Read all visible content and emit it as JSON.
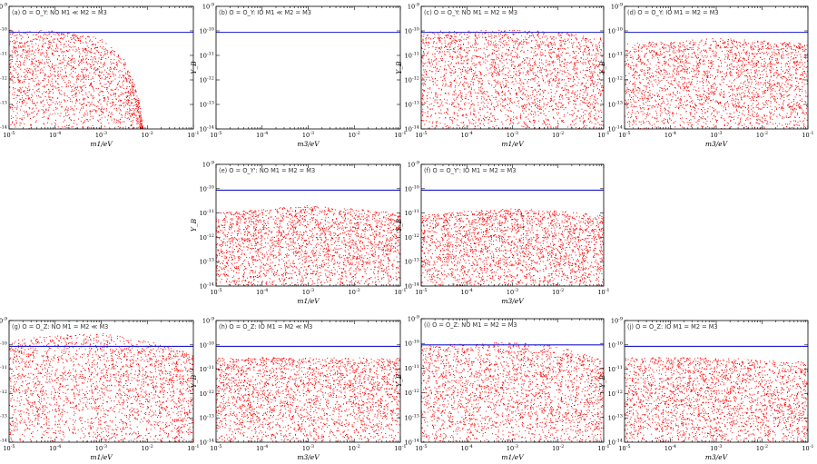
{
  "colors": {
    "points": "#ff0000",
    "bound": "#1a1acc",
    "axis": "#000000"
  },
  "chart_data": [
    {
      "id": "a",
      "type": "scatter",
      "title": "(a) O = O_Y: NO  M1 ≪ M2 = M3",
      "xlabel": "m1/eV",
      "ylabel": "Y_B",
      "xscale": "log",
      "yscale": "log",
      "xlim": [
        1e-05,
        0.1
      ],
      "ylim": [
        1e-14,
        1e-09
      ],
      "observed_Y_B": 8.7e-11,
      "xticks": [
        "10^-5",
        "10^-4",
        "10^-3",
        "10^-2",
        "10^-1"
      ],
      "yticks": [
        "10^-14",
        "10^-13",
        "10^-12",
        "10^-11",
        "10^-10",
        "10^-9"
      ],
      "scatter_envelope": {
        "x": [
          1e-05,
          0.0001,
          0.001,
          0.003,
          0.005,
          0.007,
          0.008
        ],
        "y_max": [
          1.2e-10,
          1e-10,
          5e-11,
          8e-12,
          1e-12,
          1e-13,
          1e-14
        ]
      }
    },
    {
      "id": "b",
      "type": "scatter",
      "title": "(b) O = O_Y: IO  M1 ≪ M2 = M3",
      "xlabel": "m3/eV",
      "ylabel": "Y_B",
      "xscale": "log",
      "yscale": "log",
      "xlim": [
        1e-05,
        0.1
      ],
      "ylim": [
        1e-14,
        1e-09
      ],
      "observed_Y_B": 8.7e-11,
      "xticks": [
        "10^-5",
        "10^-4",
        "10^-3",
        "10^-2",
        "10^-1"
      ],
      "yticks": [
        "10^-14",
        "10^-13",
        "10^-12",
        "10^-11",
        "10^-10",
        "10^-9"
      ],
      "scatter_envelope": null
    },
    {
      "id": "c",
      "type": "scatter",
      "title": "(c) O = O_Y: NO  M1 = M2 = M3",
      "xlabel": "m1/eV",
      "ylabel": "Y_B",
      "xscale": "log",
      "yscale": "log",
      "xlim": [
        1e-05,
        0.1
      ],
      "ylim": [
        1e-14,
        1e-09
      ],
      "observed_Y_B": 8.7e-11,
      "xticks": [
        "10^-5",
        "10^-4",
        "10^-3",
        "10^-2",
        "10^-1"
      ],
      "yticks": [
        "10^-14",
        "10^-13",
        "10^-12",
        "10^-11",
        "10^-10",
        "10^-9"
      ],
      "scatter_envelope": {
        "x": [
          1e-05,
          0.0001,
          0.001,
          0.01,
          0.1
        ],
        "y_max": [
          1e-10,
          1e-10,
          1.1e-10,
          9e-11,
          5e-11
        ]
      }
    },
    {
      "id": "d",
      "type": "scatter",
      "title": "(d) O = O_Y: IO  M1 = M2 = M3",
      "xlabel": "m3/eV",
      "ylabel": "Y_B",
      "xscale": "log",
      "yscale": "log",
      "xlim": [
        1e-05,
        0.1
      ],
      "ylim": [
        1e-14,
        1e-09
      ],
      "observed_Y_B": 8.7e-11,
      "xticks": [
        "10^-5",
        "10^-4",
        "10^-3",
        "10^-2",
        "10^-1"
      ],
      "yticks": [
        "10^-14",
        "10^-13",
        "10^-12",
        "10^-11",
        "10^-10",
        "10^-9"
      ],
      "scatter_envelope": {
        "x": [
          1e-05,
          0.0001,
          0.001,
          0.01,
          0.1
        ],
        "y_max": [
          3e-11,
          4e-11,
          5e-11,
          4e-11,
          3e-11
        ]
      }
    },
    {
      "id": "e",
      "type": "scatter",
      "title": "(e) O = O_Y': NO  M1 = M2 = M3",
      "xlabel": "m1/eV",
      "ylabel": "Y_B",
      "xscale": "log",
      "yscale": "log",
      "xlim": [
        1e-05,
        0.1
      ],
      "ylim": [
        1e-14,
        1e-09
      ],
      "observed_Y_B": 8.7e-11,
      "xticks": [
        "10^-5",
        "10^-4",
        "10^-3",
        "10^-2",
        "10^-1"
      ],
      "yticks": [
        "10^-14",
        "10^-13",
        "10^-12",
        "10^-11",
        "10^-10",
        "10^-9"
      ],
      "scatter_envelope": {
        "x": [
          1e-05,
          0.0001,
          0.001,
          0.01,
          0.1
        ],
        "y_max": [
          1e-11,
          1.5e-11,
          2e-11,
          1.5e-11,
          1e-11
        ]
      }
    },
    {
      "id": "f",
      "type": "scatter",
      "title": "(f) O = O_Y': IO  M1 = M2 = M3",
      "xlabel": "m3/eV",
      "ylabel": "Y_B",
      "xscale": "log",
      "yscale": "log",
      "xlim": [
        1e-05,
        0.1
      ],
      "ylim": [
        1e-14,
        1e-09
      ],
      "observed_Y_B": 8.7e-11,
      "xticks": [
        "10^-5",
        "10^-4",
        "10^-3",
        "10^-2",
        "10^-1"
      ],
      "yticks": [
        "10^-14",
        "10^-13",
        "10^-12",
        "10^-11",
        "10^-10",
        "10^-9"
      ],
      "scatter_envelope": {
        "x": [
          1e-05,
          0.0001,
          0.001,
          0.01,
          0.1
        ],
        "y_max": [
          8e-12,
          1.2e-11,
          1.5e-11,
          1.2e-11,
          8e-12
        ]
      }
    },
    {
      "id": "g",
      "type": "scatter",
      "title": "(g) O = O_Z: NO  M1 = M2 ≪ M3",
      "xlabel": "m1/eV",
      "ylabel": "Y_B",
      "xscale": "log",
      "yscale": "log",
      "xlim": [
        1e-05,
        0.1
      ],
      "ylim": [
        1e-14,
        1e-09
      ],
      "observed_Y_B": 8.7e-11,
      "xticks": [
        "10^-5",
        "10^-4",
        "10^-3",
        "10^-2",
        "10^-1"
      ],
      "yticks": [
        "10^-14",
        "10^-13",
        "10^-12",
        "10^-11",
        "10^-10",
        "10^-9"
      ],
      "scatter_envelope": {
        "x": [
          1e-05,
          0.0001,
          0.001,
          0.01,
          0.1
        ],
        "y_max": [
          1.5e-10,
          2.5e-10,
          3e-10,
          1.5e-10,
          4e-11
        ]
      }
    },
    {
      "id": "h",
      "type": "scatter",
      "title": "(h) O = O_Z: IO  M1 = M2 ≪ M3",
      "xlabel": "m3/eV",
      "ylabel": "Y_B",
      "xscale": "log",
      "yscale": "log",
      "xlim": [
        1e-05,
        0.1
      ],
      "ylim": [
        1e-14,
        1e-09
      ],
      "observed_Y_B": 8.7e-11,
      "xticks": [
        "10^-5",
        "10^-4",
        "10^-3",
        "10^-2",
        "10^-1"
      ],
      "yticks": [
        "10^-14",
        "10^-13",
        "10^-12",
        "10^-11",
        "10^-10",
        "10^-9"
      ],
      "scatter_envelope": {
        "x": [
          1e-05,
          0.0001,
          0.001,
          0.01,
          0.1
        ],
        "y_max": [
          3e-11,
          3e-11,
          3e-11,
          3e-11,
          3e-11
        ]
      }
    },
    {
      "id": "i",
      "type": "scatter",
      "title": "(i) O = O_Z: NO  M1 = M2 = M3",
      "xlabel": "m1/eV",
      "ylabel": "Y_B",
      "xscale": "log",
      "yscale": "log",
      "xlim": [
        1e-05,
        0.1
      ],
      "ylim": [
        1e-14,
        1e-09
      ],
      "observed_Y_B": 8.7e-11,
      "xticks": [
        "10^-5",
        "10^-4",
        "10^-3",
        "10^-2",
        "10^-1"
      ],
      "yticks": [
        "10^-14",
        "10^-13",
        "10^-12",
        "10^-11",
        "10^-10",
        "10^-9"
      ],
      "scatter_envelope": {
        "x": [
          1e-05,
          0.0001,
          0.001,
          0.01,
          0.1
        ],
        "y_max": [
          8e-11,
          1e-10,
          1.1e-10,
          8e-11,
          2e-11
        ]
      }
    },
    {
      "id": "j",
      "type": "scatter",
      "title": "(j) O = O_Z: IO  M1 = M2 = M3",
      "xlabel": "m3/eV",
      "ylabel": "Y_B",
      "xscale": "log",
      "yscale": "log",
      "xlim": [
        1e-05,
        0.1
      ],
      "ylim": [
        1e-14,
        1e-09
      ],
      "observed_Y_B": 8.7e-11,
      "xticks": [
        "10^-5",
        "10^-4",
        "10^-3",
        "10^-2",
        "10^-1"
      ],
      "yticks": [
        "10^-14",
        "10^-13",
        "10^-12",
        "10^-11",
        "10^-10",
        "10^-9"
      ],
      "scatter_envelope": {
        "x": [
          1e-05,
          0.0001,
          0.001,
          0.01,
          0.1
        ],
        "y_max": [
          3e-11,
          3e-11,
          3e-11,
          2.5e-11,
          2e-11
        ]
      }
    }
  ]
}
